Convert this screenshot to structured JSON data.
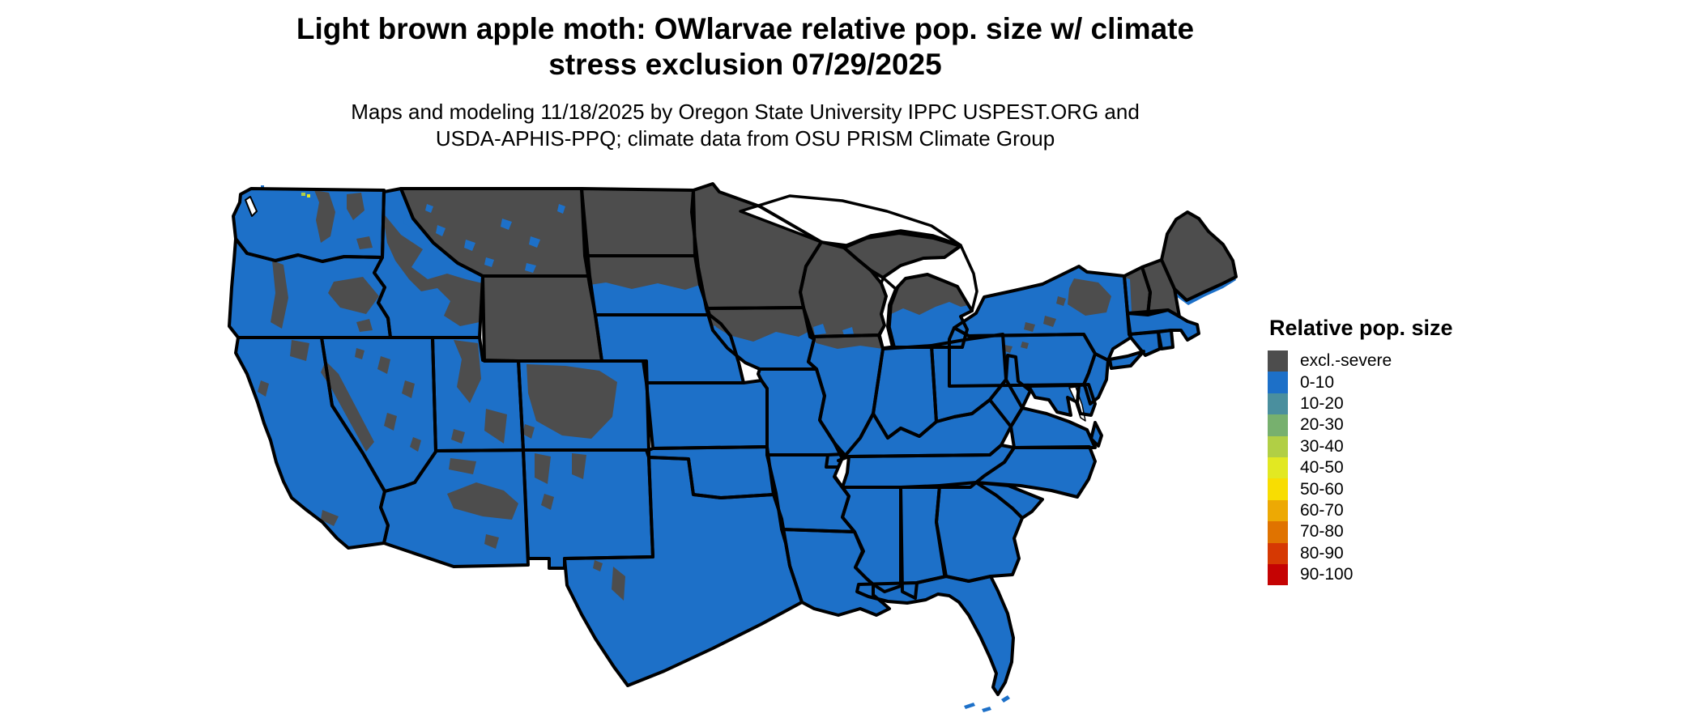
{
  "header": {
    "title_line1": "Light brown apple moth: OWlarvae relative pop. size w/ climate",
    "title_line2": "stress exclusion 07/29/2025",
    "subtitle_line1": "Maps and modeling 11/18/2025 by Oregon State University IPPC USPEST.ORG and",
    "subtitle_line2": "USDA-APHIS-PPQ; climate data from OSU PRISM Climate Group"
  },
  "legend": {
    "title": "Relative pop. size",
    "items": [
      {
        "label": "excl.-severe",
        "color": "#4d4d4d",
        "key": "ex"
      },
      {
        "label": "0-10",
        "color": "#1d70c8",
        "key": "base"
      },
      {
        "label": "10-20",
        "color": "#4a8f9e",
        "key": "c10"
      },
      {
        "label": "20-30",
        "color": "#77b06e",
        "key": "c20"
      },
      {
        "label": "30-40",
        "color": "#b1cf45",
        "key": "c30"
      },
      {
        "label": "40-50",
        "color": "#e2e822",
        "key": "c40"
      },
      {
        "label": "50-60",
        "color": "#f8dd02",
        "key": "c50"
      },
      {
        "label": "60-70",
        "color": "#eda904",
        "key": "c60"
      },
      {
        "label": "70-80",
        "color": "#e07300",
        "key": "c70"
      },
      {
        "label": "80-90",
        "color": "#d63903",
        "key": "c80"
      },
      {
        "label": "90-100",
        "color": "#c50303",
        "key": "c90"
      }
    ]
  },
  "map": {
    "region": "Contiguous United States",
    "border_color": "#000000",
    "water_color": "#ffffff",
    "excluded_states": [
      "MT",
      "WY",
      "ND",
      "MN",
      "WI",
      "MI-upper",
      "MI-lower",
      "ME",
      "VT",
      "NH"
    ],
    "partially_excluded_states": [
      "WA",
      "OR",
      "CA",
      "NV",
      "ID",
      "UT",
      "CO",
      "AZ",
      "NM",
      "TX",
      "SD",
      "IA",
      "NE",
      "IL",
      "NY",
      "PA"
    ],
    "included_states": [
      "KS",
      "OK",
      "MO",
      "AR",
      "LA",
      "TN",
      "KY",
      "IN",
      "OH",
      "WV",
      "VA",
      "NC",
      "SC",
      "GA",
      "AL",
      "MS",
      "FL",
      "NJ",
      "MD",
      "DE",
      "CT",
      "RI",
      "MA"
    ]
  }
}
